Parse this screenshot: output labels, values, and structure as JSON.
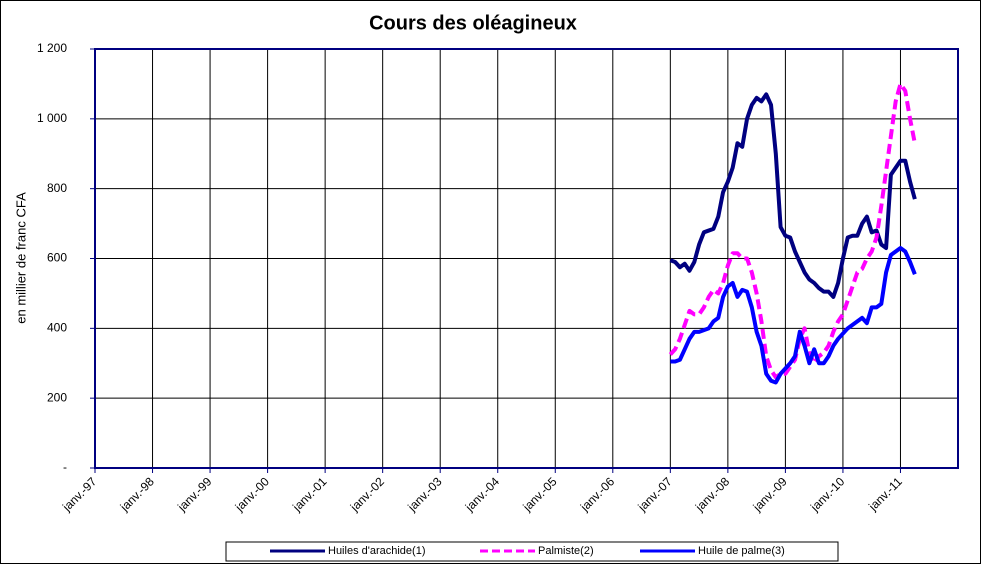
{
  "chart_data": {
    "type": "line",
    "title": "Cours des oléagineux",
    "y_label": "en millier de franc CFA",
    "xlim": [
      0,
      180
    ],
    "ylim": [
      0,
      1200
    ],
    "xticks": [
      {
        "value": 0,
        "label": "janv.-97"
      },
      {
        "value": 12,
        "label": "janv.-98"
      },
      {
        "value": 24,
        "label": "janv.-99"
      },
      {
        "value": 36,
        "label": "janv.-00"
      },
      {
        "value": 48,
        "label": "janv.-01"
      },
      {
        "value": 60,
        "label": "janv.-02"
      },
      {
        "value": 72,
        "label": "janv.-03"
      },
      {
        "value": 84,
        "label": "janv.-04"
      },
      {
        "value": 96,
        "label": "janv.-05"
      },
      {
        "value": 108,
        "label": "janv.-06"
      },
      {
        "value": 120,
        "label": "janv.-07"
      },
      {
        "value": 132,
        "label": "janv.-08"
      },
      {
        "value": 144,
        "label": "janv.-09"
      },
      {
        "value": 156,
        "label": "janv.-10"
      },
      {
        "value": 168,
        "label": "janv.-11"
      }
    ],
    "yticks": [
      {
        "value": 0,
        "label": "-"
      },
      200,
      400,
      600,
      800,
      {
        "value": 1000,
        "label": "1 000"
      },
      {
        "value": 1200,
        "label": "1 200"
      }
    ],
    "grid": true,
    "x": [
      120,
      121,
      122,
      123,
      124,
      125,
      126,
      127,
      128,
      129,
      130,
      131,
      132,
      133,
      134,
      135,
      136,
      137,
      138,
      139,
      140,
      141,
      142,
      143,
      144,
      145,
      146,
      147,
      148,
      149,
      150,
      151,
      152,
      153,
      154,
      155,
      156,
      157,
      158,
      159,
      160,
      161,
      162,
      163,
      164,
      165,
      166,
      167,
      168,
      169,
      170,
      171
    ],
    "series": [
      {
        "name": "Huiles d'arachide(1)",
        "color": "#000080",
        "style": "solid",
        "values": [
          595,
          590,
          575,
          585,
          565,
          590,
          640,
          675,
          680,
          685,
          720,
          790,
          820,
          860,
          930,
          920,
          1000,
          1040,
          1060,
          1050,
          1070,
          1040,
          900,
          690,
          665,
          660,
          620,
          590,
          560,
          540,
          530,
          515,
          505,
          505,
          490,
          530,
          600,
          660,
          665,
          665,
          700,
          720,
          675,
          680,
          640,
          630,
          840,
          860,
          880,
          880,
          820,
          770
        ]
      },
      {
        "name": "Palmiste(2)",
        "color": "#ff00ff",
        "style": "dashed",
        "values": [
          325,
          340,
          370,
          410,
          450,
          440,
          440,
          460,
          490,
          510,
          500,
          530,
          580,
          615,
          615,
          600,
          600,
          560,
          500,
          420,
          320,
          280,
          260,
          270,
          270,
          290,
          310,
          370,
          400,
          330,
          300,
          320,
          330,
          350,
          390,
          420,
          440,
          480,
          520,
          560,
          570,
          600,
          620,
          660,
          750,
          850,
          950,
          1050,
          1100,
          1080,
          1000,
          930
        ]
      },
      {
        "name": "Huile de palme(3)",
        "color": "#0000ff",
        "style": "solid",
        "values": [
          305,
          305,
          310,
          340,
          370,
          390,
          390,
          395,
          400,
          420,
          430,
          490,
          520,
          530,
          490,
          510,
          505,
          460,
          390,
          350,
          270,
          250,
          245,
          270,
          285,
          300,
          320,
          390,
          350,
          300,
          340,
          300,
          300,
          320,
          350,
          370,
          385,
          400,
          410,
          420,
          430,
          415,
          460,
          460,
          470,
          560,
          610,
          620,
          630,
          620,
          590,
          555
        ]
      }
    ]
  }
}
